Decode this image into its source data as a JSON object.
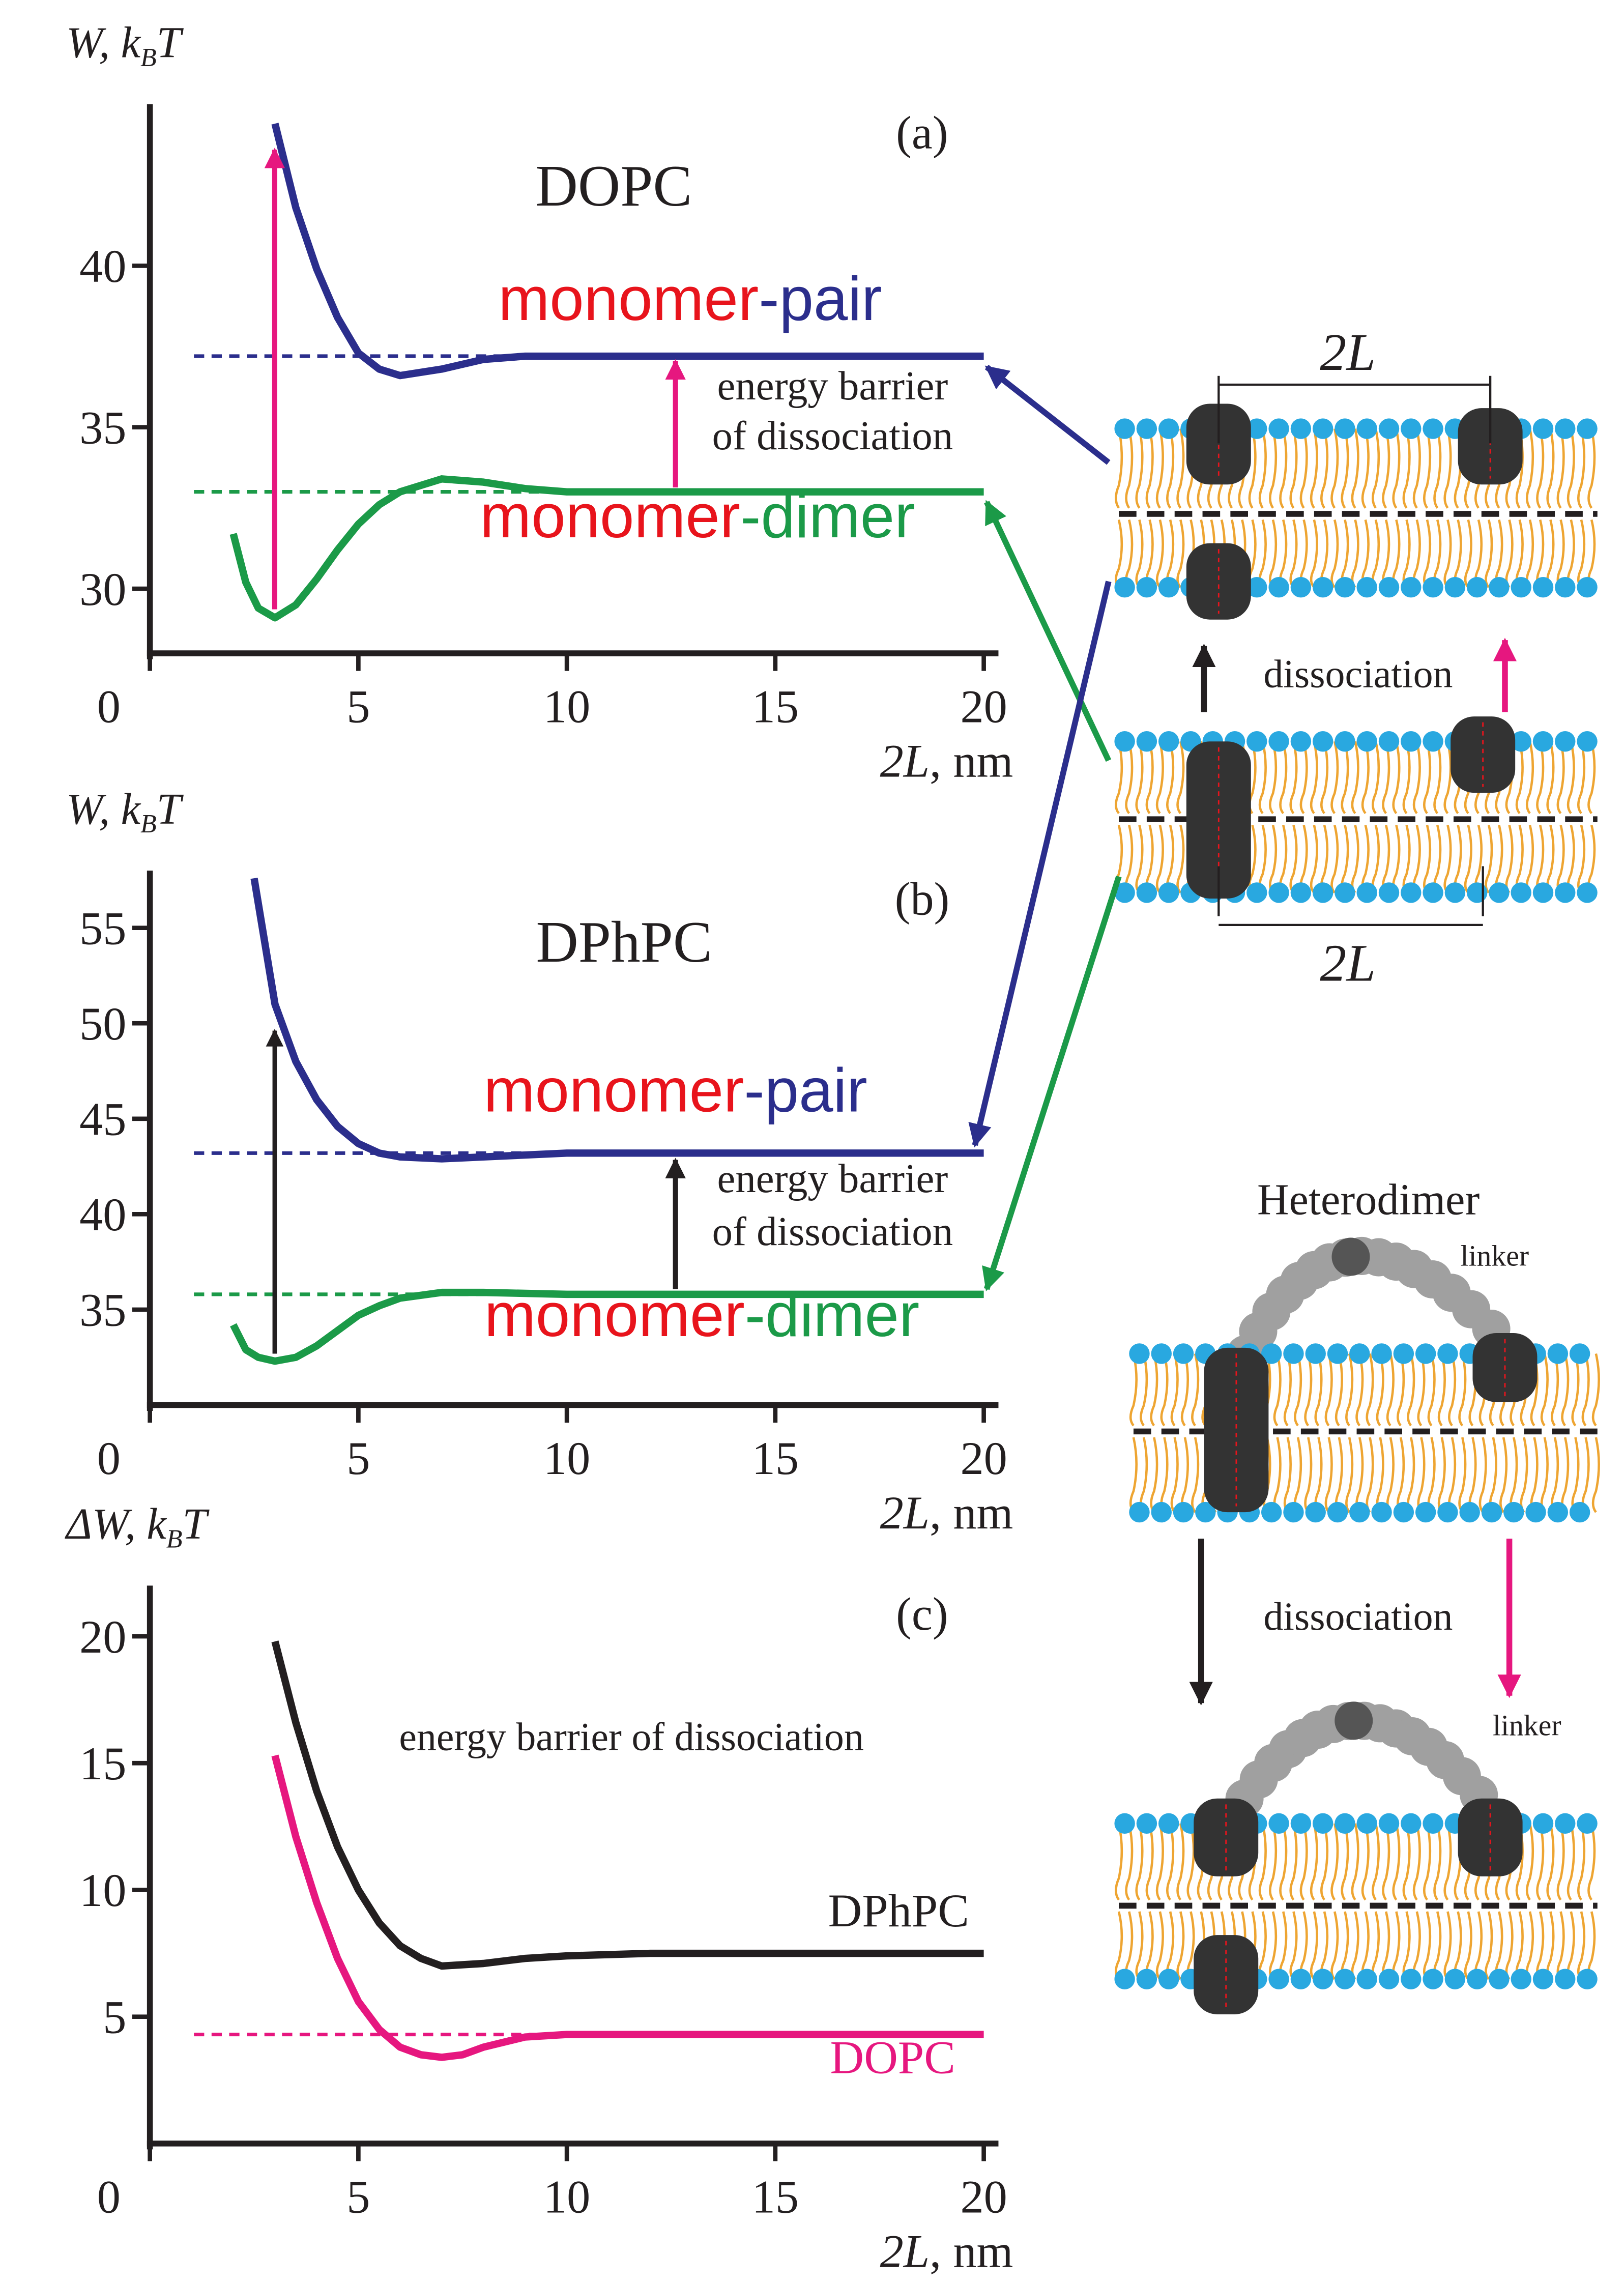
{
  "chart_data": [
    {
      "type": "line",
      "title": "(a)",
      "ylabel": [
        "W, k",
        "B",
        "T"
      ],
      "xlabel": [
        "2L",
        ", nm"
      ],
      "xlim": [
        0,
        20
      ],
      "xticks": [
        0,
        5,
        10,
        15,
        20
      ],
      "ylim": [
        28,
        45
      ],
      "yticks": [
        30,
        35,
        40
      ],
      "annotations": [
        {
          "text": "DOPC",
          "color": "#e6177f"
        },
        {
          "text": "energy barrier",
          "color": "#e6177f"
        },
        {
          "text": "of dissociation",
          "color": "#e6177f"
        }
      ],
      "reference_lines": [
        {
          "value": 37.2,
          "color": "#2b2e8c"
        },
        {
          "value": 33.0,
          "color": "#1b9a48"
        }
      ],
      "series": [
        {
          "label": [
            {
              "text": "monomer",
              "color": "#e8141c"
            },
            {
              "text": "-pair",
              "color": "#2b2e8c"
            }
          ],
          "color": "#2b2e8c",
          "x": [
            3,
            3.5,
            4,
            4.5,
            5,
            5.5,
            6,
            7,
            8,
            9,
            10,
            12,
            15,
            20
          ],
          "values": [
            44.4,
            41.8,
            39.9,
            38.4,
            37.3,
            36.8,
            36.6,
            36.8,
            37.1,
            37.2,
            37.2,
            37.2,
            37.2,
            37.2
          ]
        },
        {
          "label": [
            {
              "text": "monomer",
              "color": "#e8141c"
            },
            {
              "text": "-dimer",
              "color": "#1b9a48"
            }
          ],
          "color": "#1b9a48",
          "x": [
            2,
            2.3,
            2.6,
            3,
            3.5,
            4,
            4.5,
            5,
            5.5,
            6,
            7,
            8,
            9,
            10,
            12,
            15,
            20
          ],
          "values": [
            31.7,
            30.2,
            29.4,
            29.1,
            29.5,
            30.3,
            31.2,
            32.0,
            32.6,
            33.0,
            33.4,
            33.3,
            33.1,
            33.0,
            33.0,
            33.0,
            33.0
          ]
        }
      ]
    },
    {
      "type": "line",
      "title": "(b)",
      "ylabel": [
        "W, k",
        "B",
        "T"
      ],
      "xlabel": [
        "2L",
        ", nm"
      ],
      "xlim": [
        0,
        20
      ],
      "xticks": [
        0,
        5,
        10,
        15,
        20
      ],
      "ylim": [
        30,
        58
      ],
      "yticks": [
        35,
        40,
        45,
        50,
        55
      ],
      "annotations": [
        {
          "text": "DPhPC",
          "color": "#231f20"
        },
        {
          "text": "energy barrier",
          "color": "#231f20"
        },
        {
          "text": "of dissociation",
          "color": "#231f20"
        }
      ],
      "reference_lines": [
        {
          "value": 43.2,
          "color": "#2b2e8c"
        },
        {
          "value": 35.8,
          "color": "#1b9a48"
        }
      ],
      "series": [
        {
          "label": [
            {
              "text": "monomer",
              "color": "#e8141c"
            },
            {
              "text": "-pair",
              "color": "#2b2e8c"
            }
          ],
          "color": "#2b2e8c",
          "x": [
            2.5,
            3,
            3.5,
            4,
            4.5,
            5,
            5.5,
            6,
            7,
            8,
            10,
            12,
            15,
            20
          ],
          "values": [
            57.6,
            51,
            48,
            46,
            44.6,
            43.7,
            43.2,
            43.0,
            42.9,
            43.0,
            43.2,
            43.2,
            43.2,
            43.2
          ]
        },
        {
          "label": [
            {
              "text": "monomer",
              "color": "#e8141c"
            },
            {
              "text": "-dimer",
              "color": "#1b9a48"
            }
          ],
          "color": "#1b9a48",
          "x": [
            2,
            2.3,
            2.6,
            3,
            3.5,
            4,
            4.5,
            5,
            5.5,
            6,
            7,
            8,
            10,
            15,
            20
          ],
          "values": [
            34.2,
            32.9,
            32.5,
            32.3,
            32.5,
            33.1,
            33.9,
            34.7,
            35.2,
            35.6,
            35.9,
            35.9,
            35.8,
            35.8,
            35.8
          ]
        }
      ]
    },
    {
      "type": "line",
      "title": "(c)",
      "ylabel": [
        "ΔW, k",
        "B",
        "T"
      ],
      "xlabel": [
        "2L",
        ", nm"
      ],
      "xlim": [
        0,
        20
      ],
      "xticks": [
        0,
        5,
        10,
        15,
        20
      ],
      "ylim": [
        0,
        22
      ],
      "yticks": [
        5,
        10,
        15,
        20
      ],
      "annotations": [
        {
          "text": "energy barrier of dissociation",
          "color": "#5a1e3c"
        }
      ],
      "reference_lines": [
        {
          "value": 4.3,
          "color": "#e6177f"
        }
      ],
      "series": [
        {
          "label": [
            {
              "text": "DPhPC",
              "color": "#231f20"
            }
          ],
          "color": "#231f20",
          "x": [
            3,
            3.5,
            4,
            4.5,
            5,
            5.5,
            6,
            6.5,
            7,
            8,
            9,
            10,
            12,
            15,
            20
          ],
          "values": [
            19.8,
            16.6,
            13.9,
            11.7,
            10.0,
            8.7,
            7.8,
            7.3,
            7.0,
            7.1,
            7.3,
            7.4,
            7.5,
            7.5,
            7.5
          ]
        },
        {
          "label": [
            {
              "text": "DOPC",
              "color": "#e6177f"
            }
          ],
          "color": "#e6177f",
          "x": [
            3,
            3.5,
            4,
            4.5,
            5,
            5.5,
            6,
            6.5,
            7,
            7.5,
            8,
            9,
            10,
            12,
            15,
            20
          ],
          "values": [
            15.3,
            12.1,
            9.5,
            7.3,
            5.6,
            4.5,
            3.8,
            3.5,
            3.4,
            3.5,
            3.8,
            4.2,
            4.3,
            4.3,
            4.3,
            4.3
          ]
        }
      ]
    }
  ],
  "diagram": {
    "labels": [
      "2L",
      "dissociation",
      "2L",
      "Heterodimer",
      "linker",
      "dissociation",
      "linker"
    ]
  }
}
